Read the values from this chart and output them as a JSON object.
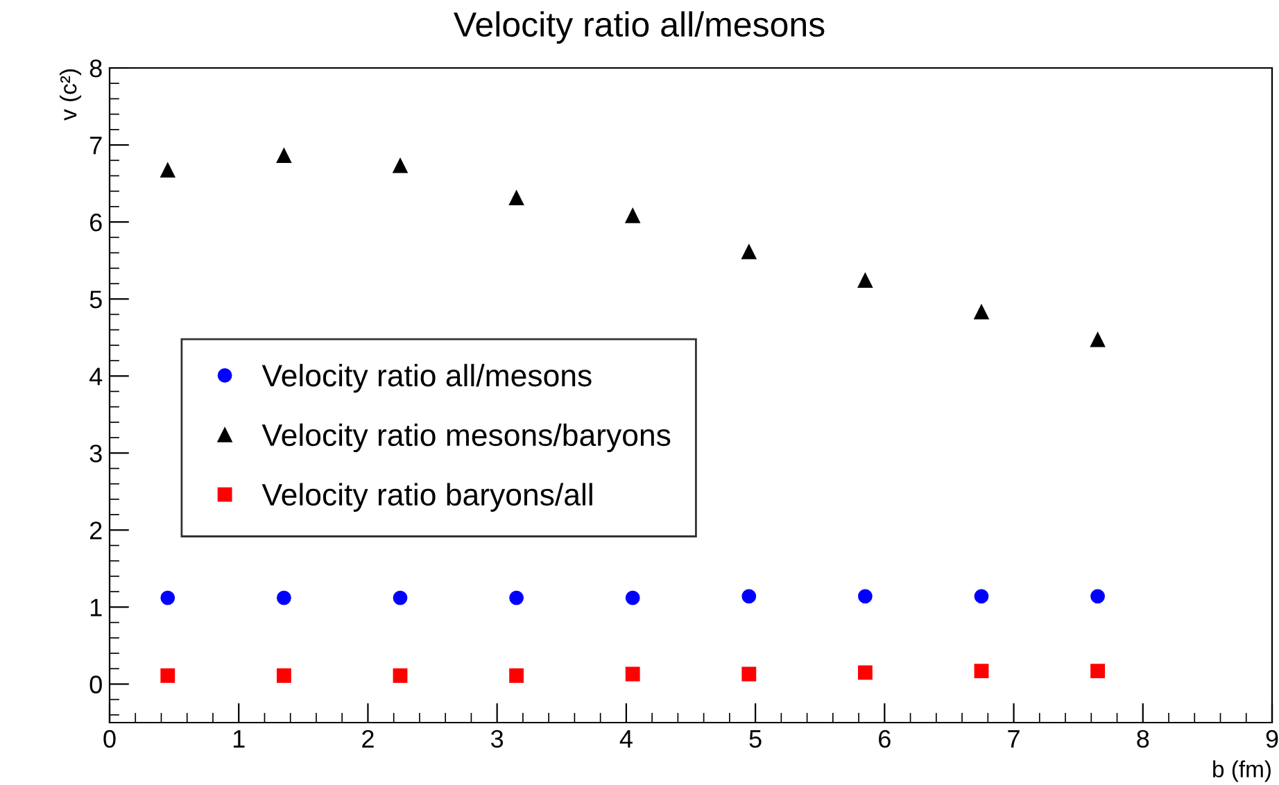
{
  "chart_data": {
    "type": "scatter",
    "title": "Velocity ratio all/mesons",
    "xlabel": "b (fm)",
    "ylabel": "v (c²)",
    "x": [
      0.45,
      1.35,
      2.25,
      3.15,
      4.05,
      4.95,
      5.85,
      6.75,
      7.65
    ],
    "series": [
      {
        "name": "Velocity ratio all/mesons",
        "color": "#0000ff",
        "marker": "circle",
        "values": [
          1.12,
          1.12,
          1.12,
          1.12,
          1.12,
          1.14,
          1.14,
          1.14,
          1.14
        ]
      },
      {
        "name": "Velocity ratio mesons/baryons",
        "color": "#000000",
        "marker": "triangle",
        "values": [
          6.67,
          6.86,
          6.73,
          6.31,
          6.08,
          5.61,
          5.24,
          4.83,
          4.47
        ]
      },
      {
        "name": "Velocity ratio baryons/all",
        "color": "#ff0000",
        "marker": "square",
        "values": [
          0.11,
          0.11,
          0.11,
          0.11,
          0.13,
          0.13,
          0.15,
          0.17,
          0.17
        ]
      }
    ],
    "xlim": [
      0,
      9
    ],
    "xticks": [
      0,
      1,
      2,
      3,
      4,
      5,
      6,
      7,
      8,
      9
    ],
    "ylim": [
      -0.5,
      8
    ],
    "yticks": [
      0,
      1,
      2,
      3,
      4,
      5,
      6,
      7,
      8
    ],
    "legend": "center left",
    "grid": false
  }
}
